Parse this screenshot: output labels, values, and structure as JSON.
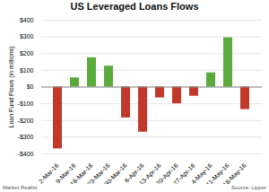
{
  "chart_data": {
    "type": "bar",
    "title": "US Leveraged Loans Flows",
    "ylabel": "Loan Fund Flows (in millions)",
    "categories": [
      "2-Mar-16",
      "9-Mar-16",
      "16-Mar-16",
      "23-Mar-16",
      "30-Mar-16",
      "6-Apr-16",
      "13-Apr-16",
      "20-Apr-16",
      "27-Apr-16",
      "4-May-16",
      "11-May-16",
      "18-May-16"
    ],
    "values": [
      -370,
      55,
      175,
      125,
      -185,
      -270,
      -65,
      -100,
      -55,
      85,
      295,
      -135
    ],
    "colors": [
      "#c0392b",
      "#5aaa3c",
      "#5aaa3c",
      "#5aaa3c",
      "#c0392b",
      "#c0392b",
      "#c0392b",
      "#c0392b",
      "#c0392b",
      "#5aaa3c",
      "#5aaa3c",
      "#c0392b"
    ],
    "ylim": [
      -400,
      400
    ],
    "yticks": [
      {
        "value": -400,
        "label": "-$400"
      },
      {
        "value": -300,
        "label": "-$300"
      },
      {
        "value": -200,
        "label": "-$200"
      },
      {
        "value": -100,
        "label": "-$100"
      },
      {
        "value": 0,
        "label": "$0"
      },
      {
        "value": 100,
        "label": "$100"
      },
      {
        "value": 200,
        "label": "$200"
      },
      {
        "value": 300,
        "label": "$300"
      },
      {
        "value": 400,
        "label": "$400"
      }
    ],
    "grid": true,
    "annotations": [
      "Market Realist",
      "Source: Lipper"
    ]
  }
}
